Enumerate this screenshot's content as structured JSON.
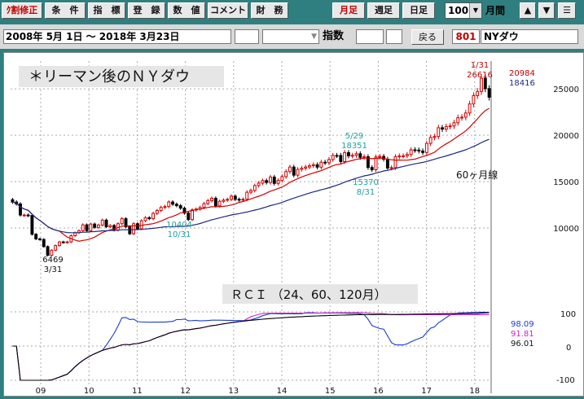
{
  "toolbar": {
    "buttons": [
      "ｸ割修正",
      "条　件",
      "指　標",
      "登　録",
      "数　値",
      "コメント",
      "財　務"
    ],
    "period_buttons": [
      "月足",
      "週足",
      "日足"
    ],
    "count_value": "100",
    "count_unit": "月間",
    "nav_up": "▲",
    "nav_down": "▼",
    "menu": "☰"
  },
  "range_bar": {
    "date_range": "2008年  5月  1日 〜 2018年  3月23日",
    "index_label": "指数",
    "back_button": "戻る",
    "code": "801",
    "name": "NYダウ"
  },
  "chart_data": {
    "type": "candlestick",
    "title": "＊リーマン後のＮＹダウ",
    "x_labels": [
      "09",
      "10",
      "11",
      "12",
      "13",
      "14",
      "15",
      "16",
      "17",
      "18"
    ],
    "price_axis": {
      "ylim": [
        5000,
        28000
      ],
      "ticks": [
        25000,
        20000,
        15000,
        10000
      ]
    },
    "annotations": [
      {
        "label": "1/31",
        "value": "26616"
      },
      {
        "label": "5/29",
        "value": "18351"
      },
      {
        "label": "8/31",
        "value": "15370"
      },
      {
        "label": "10/31",
        "value": "10404"
      },
      {
        "label": "3/31",
        "value": "6469"
      }
    ],
    "price_labels": {
      "upper": "20984",
      "lower": "18416"
    },
    "ma_label": "60ヶ月線",
    "colors": {
      "up": "#d40000",
      "down": "#000000",
      "ma_short": "#d40000",
      "ma_long": "#1a2a80",
      "rci_fast": "#1a3ccc",
      "rci_mid": "#cc22cc",
      "rci_slow": "#000000",
      "annot": "#20a0a0"
    },
    "closes": [
      12800,
      12600,
      11400,
      11400,
      11350,
      9325,
      8830,
      8776,
      8000,
      7062,
      7609,
      8109,
      8500,
      8447,
      8500,
      9171,
      9496,
      9712,
      10344,
      9713,
      10428,
      10068,
      10325,
      10856,
      10137,
      10273,
      9774,
      10466,
      11009,
      10136,
      9382,
      10465,
      9920,
      10788,
      11118,
      11006,
      11578,
      11892,
      12226,
      12319,
      12810,
      12570,
      12414,
      12143,
      11613,
      10913,
      11955,
      12046,
      12217,
      12633,
      12952,
      13212,
      12393,
      12880,
      13008,
      13091,
      13437,
      13096,
      13026,
      13104,
      13860,
      14054,
      14579,
      14839,
      15116,
      14910,
      15500,
      14810,
      15129,
      15545,
      16086,
      16576,
      15698,
      16321,
      16457,
      16580,
      16717,
      16827,
      16563,
      17098,
      17042,
      17390,
      17828,
      17823,
      17164,
      18132,
      17776,
      17840,
      18010,
      17619,
      17689,
      16528,
      16284,
      17663,
      17719,
      17425,
      16466,
      16516,
      17685,
      17773,
      17787,
      17930,
      18432,
      18400,
      18308,
      18142,
      19123,
      19763,
      19864,
      20812,
      20663,
      20940,
      21008,
      21349,
      21891,
      21948,
      22405,
      23377,
      24272,
      24719,
      26149,
      25029,
      24103
    ]
  },
  "rci": {
    "title": "ＲＣＩ （24、60、120月）",
    "ticks": [
      "100",
      "0",
      "-100"
    ],
    "values": {
      "fast": "98.09",
      "mid": "91.81",
      "slow": "96.01"
    }
  }
}
